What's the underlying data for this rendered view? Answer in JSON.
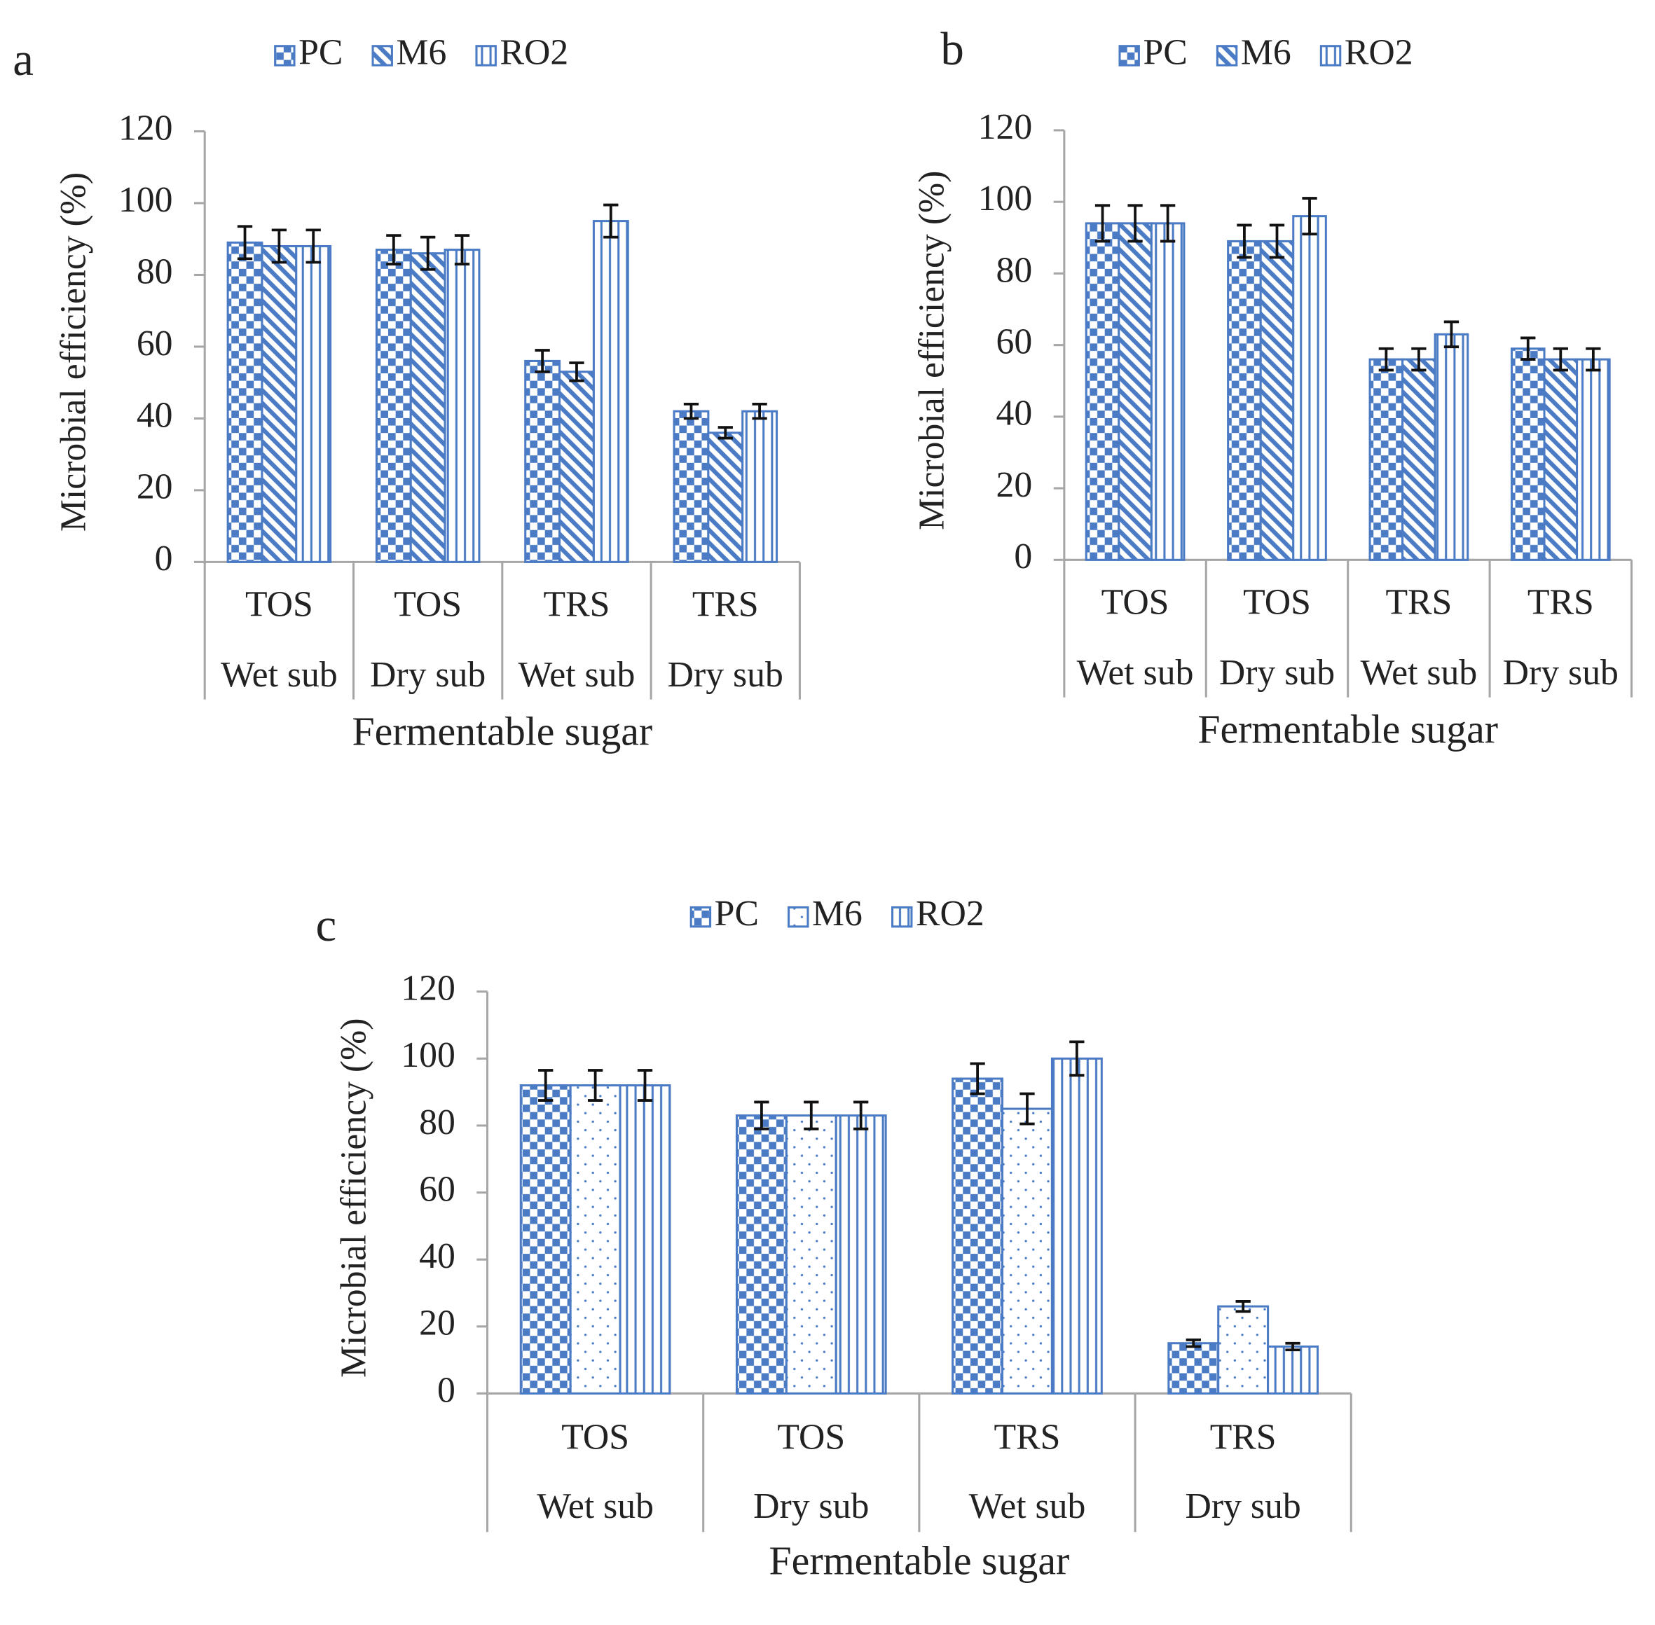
{
  "chart_data": [
    {
      "type": "bar",
      "panel_label": "a",
      "y_label": "Microbial efficiency (%)",
      "x_label": "Fermentable sugar",
      "categories": [
        "TOS",
        "TOS",
        "TRS",
        "TRS"
      ],
      "subcategories": [
        "Wet sub",
        "Dry sub",
        "Wet sub",
        "Dry sub"
      ],
      "ylim": [
        0,
        120
      ],
      "yticks": [
        0,
        20,
        40,
        60,
        80,
        100,
        120
      ],
      "legend": "top",
      "series": [
        {
          "name": "PC",
          "color": "#4a7bc4",
          "pattern": "checker",
          "values": [
            89,
            87,
            56,
            42
          ],
          "errors": [
            4.5,
            4,
            3,
            2
          ]
        },
        {
          "name": "M6",
          "color": "#4a7bc4",
          "pattern": "diagonal",
          "values": [
            88,
            86,
            53,
            36
          ],
          "errors": [
            4.5,
            4.5,
            2.5,
            1.5
          ]
        },
        {
          "name": "RO2",
          "color": "#4a7bc4",
          "pattern": "vertical",
          "values": [
            88,
            87,
            95,
            42
          ],
          "errors": [
            4.5,
            4,
            4.5,
            2
          ]
        }
      ]
    },
    {
      "type": "bar",
      "panel_label": "b",
      "y_label": "Microbial efficiency (%)",
      "x_label": "Fermentable sugar",
      "categories": [
        "TOS",
        "TOS",
        "TRS",
        "TRS"
      ],
      "subcategories": [
        "Wet sub",
        "Dry sub",
        "Wet sub",
        "Dry sub"
      ],
      "ylim": [
        0,
        120
      ],
      "yticks": [
        0,
        20,
        40,
        60,
        80,
        100,
        120
      ],
      "legend": "top",
      "series": [
        {
          "name": "PC",
          "color": "#4a7bc4",
          "pattern": "checker",
          "values": [
            94,
            89,
            56,
            59
          ],
          "errors": [
            5,
            4.5,
            3,
            3
          ]
        },
        {
          "name": "M6",
          "color": "#4a7bc4",
          "pattern": "diagonal",
          "values": [
            94,
            89,
            56,
            56
          ],
          "errors": [
            5,
            4.5,
            3,
            3
          ]
        },
        {
          "name": "RO2",
          "color": "#4a7bc4",
          "pattern": "vertical",
          "values": [
            94,
            96,
            63,
            56
          ],
          "errors": [
            5,
            5,
            3.5,
            3
          ]
        }
      ]
    },
    {
      "type": "bar",
      "panel_label": "c",
      "y_label": "Microbial efficiency (%)",
      "x_label": "Fermentable sugar",
      "categories": [
        "TOS",
        "TOS",
        "TRS",
        "TRS"
      ],
      "subcategories": [
        "Wet sub",
        "Dry sub",
        "Wet sub",
        "Dry sub"
      ],
      "ylim": [
        0,
        120
      ],
      "yticks": [
        0,
        20,
        40,
        60,
        80,
        100,
        120
      ],
      "legend": "top",
      "series": [
        {
          "name": "PC",
          "color": "#4a7bc4",
          "pattern": "checker",
          "values": [
            92,
            83,
            94,
            15
          ],
          "errors": [
            4.5,
            4,
            4.5,
            1
          ]
        },
        {
          "name": "M6",
          "color": "#4a7bc4",
          "pattern": "dots",
          "values": [
            92,
            83,
            85,
            26
          ],
          "errors": [
            4.5,
            4,
            4.5,
            1.5
          ]
        },
        {
          "name": "RO2",
          "color": "#4a7bc4",
          "pattern": "vertical",
          "values": [
            92,
            83,
            100,
            14
          ],
          "errors": [
            4.5,
            4,
            5,
            1
          ]
        }
      ]
    }
  ]
}
